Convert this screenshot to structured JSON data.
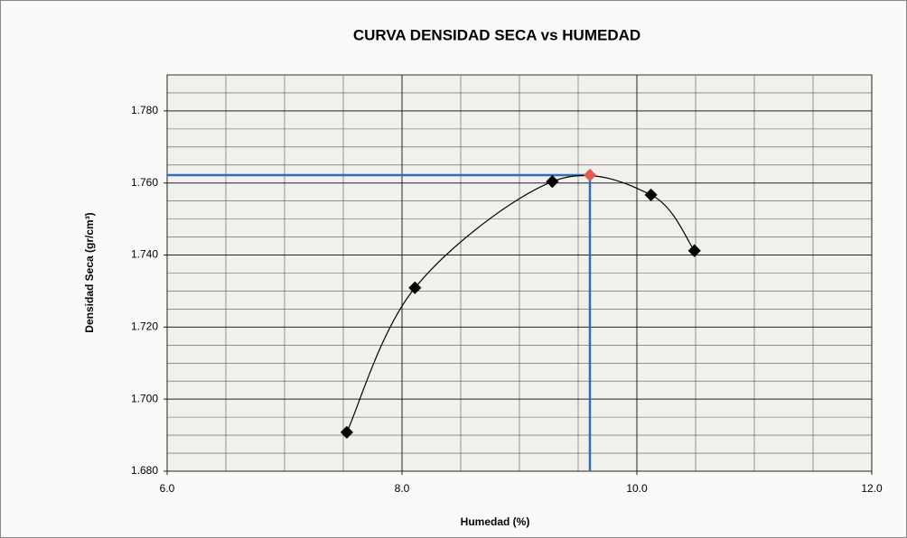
{
  "chart_data": {
    "type": "scatter",
    "title": "CURVA DENSIDAD SECA vs HUMEDAD",
    "x_label": "Humedad (%)",
    "y_label": "Densidad Seca (gr/cm³)",
    "xlim": [
      6,
      12
    ],
    "xticks": [
      {
        "value": 6,
        "label": "6.0"
      },
      {
        "value": 8,
        "label": "8.0"
      },
      {
        "value": 10,
        "label": "10.0"
      },
      {
        "value": 12,
        "label": "12.0"
      }
    ],
    "ylim": [
      1.68,
      1.79
    ],
    "yticks": [
      {
        "value": 1.68,
        "label": "1.680"
      },
      {
        "value": 1.7,
        "label": "1.700"
      },
      {
        "value": 1.72,
        "label": "1.720"
      },
      {
        "value": 1.74,
        "label": "1.740"
      },
      {
        "value": 1.76,
        "label": "1.760"
      },
      {
        "value": 1.78,
        "label": "1.780"
      }
    ],
    "grid": true,
    "series": [
      {
        "color": "#000000",
        "x": [
          7.53,
          8.11,
          9.28,
          10.12,
          10.49
        ],
        "values": [
          1.6908,
          1.7309,
          1.7604,
          1.7567,
          1.7412
        ]
      }
    ],
    "optimum": {
      "x": 9.6,
      "y": 1.7622,
      "color": "#e05a5a",
      "guide_color": "#2f6fb5"
    }
  }
}
